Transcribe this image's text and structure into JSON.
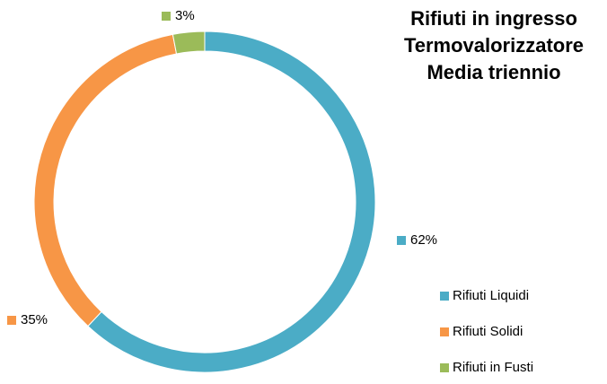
{
  "chart_data": {
    "type": "donut",
    "title": "Rifiuti in ingresso Termovalorizzatore Media triennio",
    "categories": [
      "Rifiuti Liquidi",
      "Rifiuti Solidi",
      "Rifiuti in Fusti"
    ],
    "values": [
      62,
      35,
      3
    ],
    "value_labels": [
      "62%",
      "35%",
      "3%"
    ],
    "colors": [
      "#4bacc6",
      "#f79646",
      "#9bbb59"
    ],
    "legend": "right"
  }
}
